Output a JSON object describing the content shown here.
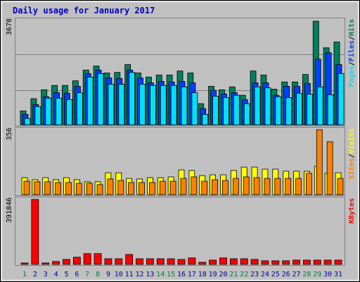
{
  "chart_data": [
    {
      "type": "bar",
      "title": "Daily usage for January 2017",
      "ylim": [
        0,
        3678
      ],
      "yticks": [
        3678
      ],
      "separator": "/",
      "series": [
        {
          "name": "Hits",
          "color": "#00805c",
          "values": [
            480,
            900,
            1210,
            1360,
            1360,
            1520,
            1890,
            2030,
            1790,
            1810,
            2080,
            1790,
            1650,
            1720,
            1720,
            1860,
            1790,
            730,
            1330,
            1210,
            1310,
            1020,
            1860,
            1720,
            1230,
            1480,
            1480,
            1740,
            3580,
            2660,
            2860
          ]
        },
        {
          "name": "Files",
          "color": "#0040ff",
          "values": [
            360,
            700,
            970,
            1110,
            1090,
            1330,
            1770,
            1890,
            1620,
            1600,
            1890,
            1620,
            1450,
            1500,
            1480,
            1500,
            1450,
            560,
            1190,
            1070,
            1110,
            870,
            1450,
            1450,
            1020,
            1330,
            1330,
            1430,
            2270,
            2490,
            2080
          ]
        },
        {
          "name": "Pages",
          "color": "#00e0ff",
          "values": [
            220,
            630,
            920,
            920,
            870,
            1110,
            1650,
            1770,
            1400,
            1400,
            1810,
            1400,
            1360,
            1360,
            1360,
            1310,
            1110,
            360,
            990,
            940,
            1020,
            730,
            1310,
            1280,
            970,
            940,
            1090,
            1060,
            1310,
            1040,
            1770
          ]
        }
      ]
    },
    {
      "type": "bar",
      "ylim": [
        0,
        356
      ],
      "yticks": [
        356
      ],
      "separator": "/",
      "series": [
        {
          "name": "Visits",
          "color": "#ffff00",
          "values": [
            90,
            79,
            90,
            79,
            90,
            79,
            68,
            68,
            116,
            116,
            86,
            83,
            90,
            90,
            94,
            131,
            128,
            101,
            105,
            105,
            128,
            146,
            146,
            135,
            135,
            124,
            124,
            124,
            150,
            113,
            116
          ]
        },
        {
          "name": "Sites",
          "color": "#ff8000",
          "values": [
            71,
            68,
            68,
            64,
            64,
            60,
            60,
            53,
            83,
            75,
            64,
            64,
            64,
            71,
            71,
            86,
            94,
            71,
            79,
            75,
            86,
            94,
            90,
            86,
            86,
            86,
            86,
            113,
            345,
            281,
            86
          ]
        }
      ]
    },
    {
      "type": "bar",
      "ylim": [
        0,
        391846
      ],
      "yticks": [
        391846
      ],
      "series": [
        {
          "name": "KBytes",
          "color": "#ff0000",
          "values": [
            8300,
            380000,
            8300,
            17000,
            29000,
            42000,
            63000,
            63000,
            33000,
            33000,
            58000,
            33000,
            33000,
            33000,
            33000,
            29000,
            38000,
            12500,
            25000,
            38000,
            33000,
            33000,
            29000,
            21000,
            21000,
            21000,
            25000,
            25000,
            25000,
            25000,
            25000
          ]
        }
      ],
      "categories": [
        "1",
        "2",
        "3",
        "4",
        "5",
        "6",
        "7",
        "8",
        "9",
        "10",
        "11",
        "12",
        "13",
        "14",
        "15",
        "16",
        "17",
        "18",
        "19",
        "20",
        "21",
        "22",
        "23",
        "24",
        "25",
        "26",
        "27",
        "28",
        "29",
        "30",
        "31"
      ],
      "category_colors": [
        "#008040",
        "#0000a0",
        "#0000a0",
        "#0000a0",
        "#0000a0",
        "#0000a0",
        "#008040",
        "#008040",
        "#0000a0",
        "#0000a0",
        "#0000a0",
        "#0000a0",
        "#0000a0",
        "#008040",
        "#008040",
        "#0000a0",
        "#0000a0",
        "#0000a0",
        "#0000a0",
        "#0000a0",
        "#008040",
        "#008040",
        "#0000a0",
        "#0000a0",
        "#0000a0",
        "#0000a0",
        "#0000a0",
        "#008040",
        "#008040",
        "#0000a0",
        "#0000a0"
      ]
    }
  ]
}
